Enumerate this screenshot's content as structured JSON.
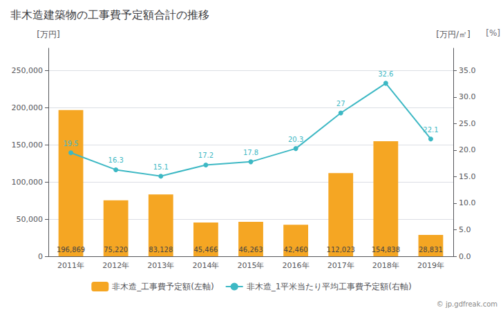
{
  "chart_data": {
    "type": "bar",
    "title": "非木造建築物の工事費予定額合計の推移",
    "categories": [
      "2011年",
      "2012年",
      "2013年",
      "2014年",
      "2015年",
      "2016年",
      "2017年",
      "2018年",
      "2019年"
    ],
    "series": [
      {
        "name": "非木造_工事費予定額(左軸)",
        "type": "bar",
        "color": "#f5a623",
        "values": [
          196869,
          75220,
          83128,
          45466,
          46263,
          42460,
          112023,
          154838,
          28831
        ],
        "value_labels": [
          "196,869",
          "75,220",
          "83,128",
          "45,466",
          "46,263",
          "42,460",
          "112,023",
          "154,838",
          "28,831"
        ]
      },
      {
        "name": "非木造_1平米当たり平均工事費予定額(右軸)",
        "type": "line",
        "axis": "y2",
        "color": "#3db8c4",
        "marker": "circle",
        "values": [
          19.5,
          16.3,
          15.1,
          17.2,
          17.8,
          20.3,
          27,
          32.6,
          22.1
        ]
      }
    ],
    "ylabel": "[万円]",
    "y2label": "[万円/㎡]",
    "annotations": [
      "[%]",
      "© jp.gdfreak.com"
    ],
    "ylim": [
      0,
      280000
    ],
    "yticks": [
      0,
      {
        "value": 50000,
        "label": "50,000"
      },
      {
        "value": 100000,
        "label": "100,000"
      },
      {
        "value": 150000,
        "label": "150,000"
      },
      {
        "value": 200000,
        "label": "200,000"
      },
      {
        "value": 250000,
        "label": "250,000"
      }
    ],
    "y2lim": [
      0,
      39.2
    ],
    "y2ticks": [
      {
        "value": 0.0,
        "label": "0.0"
      },
      {
        "value": 5.0,
        "label": "5.0"
      },
      {
        "value": 10.0,
        "label": "10.0"
      },
      {
        "value": 15.0,
        "label": "15.0"
      },
      {
        "value": 20.0,
        "label": "20.0"
      },
      {
        "value": 25.0,
        "label": "25.0"
      },
      {
        "value": 30.0,
        "label": "30.0"
      },
      {
        "value": 35.0,
        "label": "35.0"
      }
    ],
    "grid": true,
    "legend": "bottom",
    "data_labels": true
  }
}
